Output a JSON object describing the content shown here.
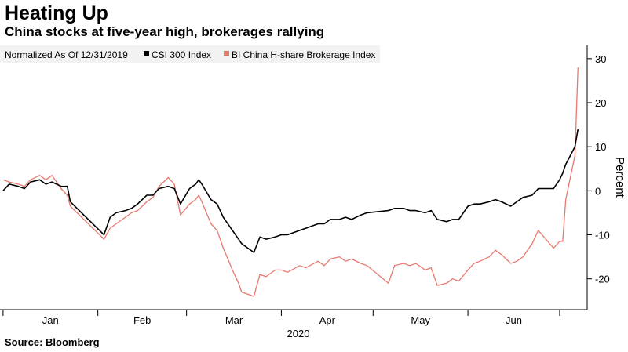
{
  "chart_data": {
    "type": "line",
    "title": "Heating Up",
    "subtitle": "China stocks at five-year high, brokerages rallying",
    "source": "Source: Bloomberg",
    "legend_note": "Normalized As Of 12/31/2019",
    "legend_position": "top-left",
    "xlabel": "2020",
    "ylabel": "Percent",
    "ylim": [
      -27,
      33
    ],
    "yticks": [
      30,
      20,
      10,
      0,
      -10,
      -20
    ],
    "y_axis_side": "right",
    "xlim": [
      "2019-12-31",
      "2020-07-10"
    ],
    "month_ticks": [
      "Jan",
      "Feb",
      "Mar",
      "Apr",
      "May",
      "Jun"
    ],
    "grid": false,
    "series": [
      {
        "name": "CSI 300 Index",
        "color": "#000000",
        "points": [
          [
            "2020-01-01",
            0
          ],
          [
            "2020-01-03",
            1.5
          ],
          [
            "2020-01-06",
            1.0
          ],
          [
            "2020-01-08",
            0.5
          ],
          [
            "2020-01-10",
            2.0
          ],
          [
            "2020-01-13",
            2.5
          ],
          [
            "2020-01-15",
            1.5
          ],
          [
            "2020-01-17",
            2.0
          ],
          [
            "2020-01-20",
            1.0
          ],
          [
            "2020-01-22",
            1.0
          ],
          [
            "2020-01-23",
            -2.5
          ],
          [
            "2020-02-03",
            -10.0
          ],
          [
            "2020-02-05",
            -6.0
          ],
          [
            "2020-02-07",
            -5.0
          ],
          [
            "2020-02-10",
            -4.5
          ],
          [
            "2020-02-12",
            -4.0
          ],
          [
            "2020-02-14",
            -3.0
          ],
          [
            "2020-02-17",
            -1.0
          ],
          [
            "2020-02-19",
            -1.0
          ],
          [
            "2020-02-21",
            0.5
          ],
          [
            "2020-02-24",
            1.0
          ],
          [
            "2020-02-26",
            0.5
          ],
          [
            "2020-02-28",
            -3.0
          ],
          [
            "2020-03-02",
            0.5
          ],
          [
            "2020-03-04",
            1.5
          ],
          [
            "2020-03-05",
            2.5
          ],
          [
            "2020-03-06",
            1.5
          ],
          [
            "2020-03-09",
            -2.0
          ],
          [
            "2020-03-11",
            -3.0
          ],
          [
            "2020-03-13",
            -6.0
          ],
          [
            "2020-03-16",
            -9.0
          ],
          [
            "2020-03-18",
            -11.0
          ],
          [
            "2020-03-19",
            -12.0
          ],
          [
            "2020-03-23",
            -14.0
          ],
          [
            "2020-03-25",
            -10.5
          ],
          [
            "2020-03-27",
            -11.0
          ],
          [
            "2020-03-30",
            -10.5
          ],
          [
            "2020-04-01",
            -10.0
          ],
          [
            "2020-04-03",
            -10.0
          ],
          [
            "2020-04-07",
            -9.0
          ],
          [
            "2020-04-09",
            -8.5
          ],
          [
            "2020-04-13",
            -7.5
          ],
          [
            "2020-04-15",
            -7.5
          ],
          [
            "2020-04-17",
            -6.5
          ],
          [
            "2020-04-20",
            -6.5
          ],
          [
            "2020-04-22",
            -6.0
          ],
          [
            "2020-04-24",
            -6.5
          ],
          [
            "2020-04-27",
            -5.5
          ],
          [
            "2020-04-29",
            -5.0
          ],
          [
            "2020-05-06",
            -4.5
          ],
          [
            "2020-05-08",
            -4.0
          ],
          [
            "2020-05-11",
            -4.0
          ],
          [
            "2020-05-13",
            -4.5
          ],
          [
            "2020-05-15",
            -4.5
          ],
          [
            "2020-05-18",
            -5.0
          ],
          [
            "2020-05-20",
            -4.5
          ],
          [
            "2020-05-22",
            -6.5
          ],
          [
            "2020-05-25",
            -7.0
          ],
          [
            "2020-05-27",
            -6.5
          ],
          [
            "2020-05-29",
            -6.5
          ],
          [
            "2020-06-01",
            -3.5
          ],
          [
            "2020-06-03",
            -3.0
          ],
          [
            "2020-06-05",
            -3.0
          ],
          [
            "2020-06-08",
            -2.5
          ],
          [
            "2020-06-10",
            -2.0
          ],
          [
            "2020-06-12",
            -2.5
          ],
          [
            "2020-06-15",
            -3.5
          ],
          [
            "2020-06-17",
            -2.5
          ],
          [
            "2020-06-19",
            -1.5
          ],
          [
            "2020-06-22",
            -1.0
          ],
          [
            "2020-06-24",
            0.5
          ],
          [
            "2020-06-29",
            0.5
          ],
          [
            "2020-07-01",
            2.5
          ],
          [
            "2020-07-02",
            4.0
          ],
          [
            "2020-07-03",
            6.0
          ],
          [
            "2020-07-06",
            10.0
          ],
          [
            "2020-07-07",
            14.0
          ]
        ]
      },
      {
        "name": "BI China H-share Brokerage Index",
        "color": "#e8796f",
        "points": [
          [
            "2020-01-01",
            2.5
          ],
          [
            "2020-01-03",
            2.0
          ],
          [
            "2020-01-06",
            1.5
          ],
          [
            "2020-01-08",
            1.0
          ],
          [
            "2020-01-10",
            2.5
          ],
          [
            "2020-01-13",
            3.5
          ],
          [
            "2020-01-15",
            2.5
          ],
          [
            "2020-01-17",
            3.5
          ],
          [
            "2020-01-20",
            0.5
          ],
          [
            "2020-01-22",
            -1.0
          ],
          [
            "2020-01-23",
            -3.5
          ],
          [
            "2020-02-03",
            -11.0
          ],
          [
            "2020-02-05",
            -8.5
          ],
          [
            "2020-02-07",
            -7.5
          ],
          [
            "2020-02-10",
            -6.0
          ],
          [
            "2020-02-12",
            -5.0
          ],
          [
            "2020-02-14",
            -4.5
          ],
          [
            "2020-02-17",
            -2.5
          ],
          [
            "2020-02-19",
            -1.5
          ],
          [
            "2020-02-21",
            1.0
          ],
          [
            "2020-02-24",
            3.0
          ],
          [
            "2020-02-26",
            1.5
          ],
          [
            "2020-02-28",
            -5.5
          ],
          [
            "2020-03-02",
            -3.0
          ],
          [
            "2020-03-04",
            -2.0
          ],
          [
            "2020-03-05",
            -1.0
          ],
          [
            "2020-03-06",
            -2.5
          ],
          [
            "2020-03-09",
            -7.5
          ],
          [
            "2020-03-11",
            -9.0
          ],
          [
            "2020-03-13",
            -13.0
          ],
          [
            "2020-03-16",
            -18.0
          ],
          [
            "2020-03-18",
            -21.0
          ],
          [
            "2020-03-19",
            -23.0
          ],
          [
            "2020-03-23",
            -24.0
          ],
          [
            "2020-03-25",
            -19.0
          ],
          [
            "2020-03-27",
            -19.5
          ],
          [
            "2020-03-30",
            -18.0
          ],
          [
            "2020-04-01",
            -18.0
          ],
          [
            "2020-04-03",
            -18.5
          ],
          [
            "2020-04-07",
            -17.0
          ],
          [
            "2020-04-09",
            -17.5
          ],
          [
            "2020-04-13",
            -16.0
          ],
          [
            "2020-04-15",
            -17.0
          ],
          [
            "2020-04-17",
            -15.5
          ],
          [
            "2020-04-20",
            -15.0
          ],
          [
            "2020-04-22",
            -16.0
          ],
          [
            "2020-04-24",
            -15.5
          ],
          [
            "2020-04-27",
            -16.5
          ],
          [
            "2020-04-29",
            -17.0
          ],
          [
            "2020-05-06",
            -21.0
          ],
          [
            "2020-05-08",
            -17.0
          ],
          [
            "2020-05-11",
            -16.5
          ],
          [
            "2020-05-13",
            -17.0
          ],
          [
            "2020-05-15",
            -16.5
          ],
          [
            "2020-05-18",
            -18.0
          ],
          [
            "2020-05-20",
            -17.5
          ],
          [
            "2020-05-22",
            -21.5
          ],
          [
            "2020-05-25",
            -21.0
          ],
          [
            "2020-05-27",
            -20.0
          ],
          [
            "2020-05-29",
            -20.5
          ],
          [
            "2020-06-01",
            -18.0
          ],
          [
            "2020-06-03",
            -16.5
          ],
          [
            "2020-06-05",
            -16.0
          ],
          [
            "2020-06-08",
            -15.0
          ],
          [
            "2020-06-10",
            -13.5
          ],
          [
            "2020-06-12",
            -14.5
          ],
          [
            "2020-06-15",
            -16.5
          ],
          [
            "2020-06-17",
            -16.0
          ],
          [
            "2020-06-19",
            -15.0
          ],
          [
            "2020-06-22",
            -12.0
          ],
          [
            "2020-06-24",
            -9.0
          ],
          [
            "2020-06-29",
            -13.0
          ],
          [
            "2020-07-01",
            -11.5
          ],
          [
            "2020-07-02",
            -11.5
          ],
          [
            "2020-07-03",
            -2.0
          ],
          [
            "2020-07-06",
            8.0
          ],
          [
            "2020-07-07",
            28.0
          ]
        ]
      }
    ]
  }
}
